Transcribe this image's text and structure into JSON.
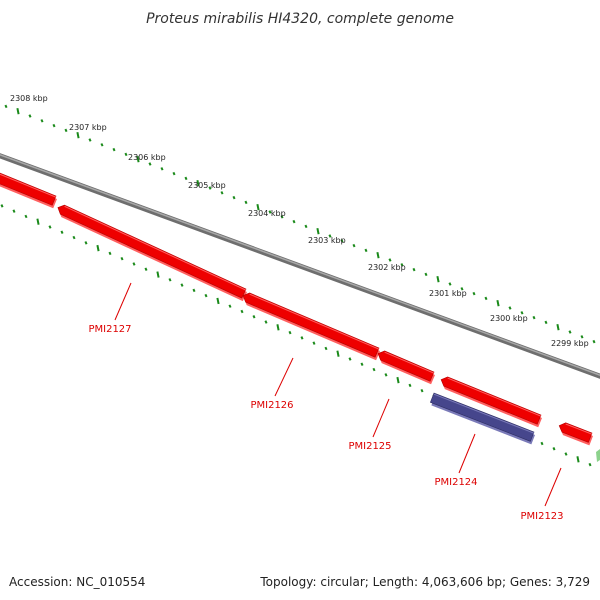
{
  "title": "Proteus mirabilis HI4320, complete genome",
  "footer": {
    "accession": "Accession: NC_010554",
    "summary": "Topology: circular; Length: 4,063,606 bp; Genes: 3,729"
  },
  "colors": {
    "backbone": "#808080",
    "gene_forward": "#ee0000",
    "gene_rna": "#46468c",
    "tick": "#1a8a1a",
    "label": "#dd0000",
    "accent": "#8cd28c"
  },
  "ruler": {
    "unit": "kbp",
    "ticks": [
      {
        "label": "2308 kbp"
      },
      {
        "label": "2307 kbp"
      },
      {
        "label": "2306 kbp"
      },
      {
        "label": "2305 kbp"
      },
      {
        "label": "2304 kbp"
      },
      {
        "label": "2303 kbp"
      },
      {
        "label": "2302 kbp"
      },
      {
        "label": "2301 kbp"
      },
      {
        "label": "2300 kbp"
      },
      {
        "label": "2299 kbp"
      }
    ]
  },
  "genes": [
    {
      "label": "PMI2127",
      "type": "cds"
    },
    {
      "label": "PMI2126",
      "type": "cds"
    },
    {
      "label": "PMI2125",
      "type": "cds"
    },
    {
      "label": "PMI2124",
      "type": "rna"
    },
    {
      "label": "PMI2123",
      "type": "cds"
    }
  ]
}
